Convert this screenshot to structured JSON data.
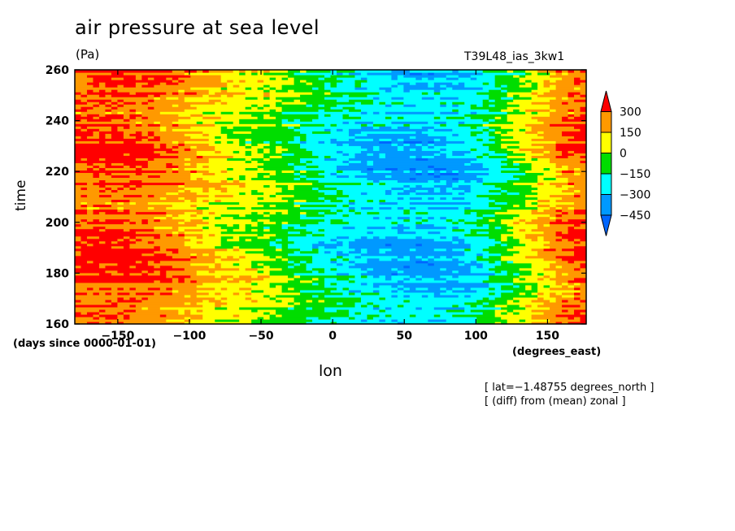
{
  "chart_data": {
    "type": "heatmap",
    "title": "air pressure at sea level",
    "units": "(Pa)",
    "run_id": "T39L48_ias_3kw1",
    "xlabel": "lon",
    "x_unit": "(degrees_east)",
    "ylabel": "time",
    "y_unit": "(days since 0000-01-01)",
    "xlim": [
      -180,
      177
    ],
    "ylim": [
      160,
      260
    ],
    "x_ticks": [
      -150,
      -100,
      -50,
      0,
      50,
      100,
      150
    ],
    "x_tick_labels": [
      "−150",
      "−100",
      "−50",
      "0",
      "50",
      "100",
      "150"
    ],
    "y_ticks": [
      160,
      180,
      200,
      220,
      240,
      260
    ],
    "colorbar": {
      "levels": [
        300,
        150,
        0,
        -150,
        -300,
        -450
      ],
      "level_labels": [
        "300",
        "150",
        "0",
        "−150",
        "−300",
        "−450"
      ],
      "colors": [
        "#ff0000",
        "#ff9900",
        "#ffff00",
        "#00dd00",
        "#00ffff",
        "#0099ff",
        "#0066ff"
      ]
    },
    "notes": [
      "[ lat=−1.48755 degrees_north ]",
      "[ (diff) from (mean) zonal ]"
    ],
    "zonal_profile": {
      "lon": [
        -180,
        -150,
        -120,
        -100,
        -80,
        -60,
        -40,
        -20,
        0,
        20,
        40,
        60,
        80,
        100,
        120,
        140,
        160,
        177
      ],
      "anomaly_pa": [
        300,
        320,
        260,
        180,
        90,
        40,
        -30,
        -120,
        -200,
        -260,
        -300,
        -310,
        -300,
        -230,
        -80,
        80,
        240,
        300
      ]
    }
  }
}
